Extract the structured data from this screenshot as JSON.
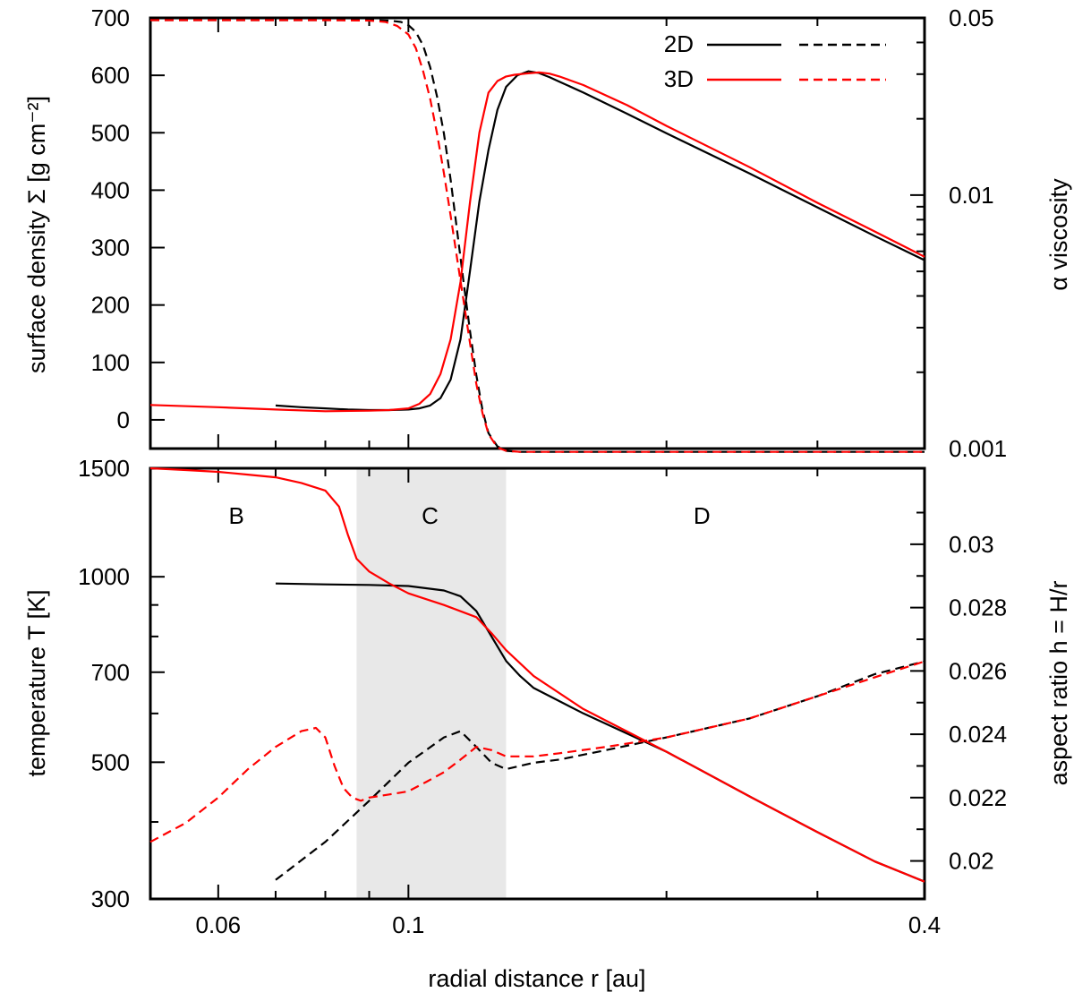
{
  "chart_data": [
    {
      "type": "line",
      "panel": "top",
      "x_scale": "log",
      "xlim": [
        0.05,
        0.4
      ],
      "ylabel_left": "surface density Σ [g cm⁻²]",
      "ylabel_right": "α viscosity",
      "ylim_left": [
        -50,
        700
      ],
      "ylim_right": [
        0.001,
        0.05
      ],
      "right_scale": "log",
      "left_ticks": [
        "0",
        "100",
        "200",
        "300",
        "400",
        "500",
        "600",
        "700"
      ],
      "right_ticks": [
        "0.001",
        "0.01",
        "0.05"
      ],
      "legend": {
        "position": "top-right",
        "entries": [
          "2D",
          "3D"
        ]
      },
      "series": [
        {
          "name": "2D",
          "axis": "left",
          "style": "solid",
          "color": "#000000",
          "x": [
            0.07,
            0.075,
            0.08,
            0.085,
            0.09,
            0.095,
            0.1,
            0.103,
            0.106,
            0.109,
            0.112,
            0.115,
            0.118,
            0.121,
            0.124,
            0.127,
            0.13,
            0.134,
            0.138,
            0.142,
            0.146,
            0.15,
            0.16,
            0.18,
            0.2,
            0.25,
            0.3,
            0.35,
            0.4
          ],
          "y": [
            25,
            22,
            20,
            18,
            17,
            17,
            18,
            20,
            25,
            38,
            70,
            140,
            260,
            380,
            470,
            540,
            580,
            600,
            607,
            604,
            597,
            589,
            570,
            533,
            499,
            429,
            370,
            320,
            278
          ]
        },
        {
          "name": "2D",
          "axis": "right",
          "style": "dashed",
          "color": "#000000",
          "x": [
            0.05,
            0.06,
            0.07,
            0.08,
            0.09,
            0.095,
            0.098,
            0.1,
            0.102,
            0.104,
            0.106,
            0.108,
            0.11,
            0.112,
            0.114,
            0.116,
            0.118,
            0.12,
            0.122,
            0.124,
            0.127,
            0.13,
            0.135,
            0.14,
            0.2,
            0.3,
            0.4
          ],
          "y": [
            0.049,
            0.049,
            0.049,
            0.049,
            0.049,
            0.0488,
            0.0482,
            0.0468,
            0.044,
            0.039,
            0.032,
            0.0245,
            0.0175,
            0.0115,
            0.0072,
            0.0045,
            0.0029,
            0.00195,
            0.00142,
            0.00115,
            0.00102,
            0.00098,
            0.00097,
            0.00097,
            0.00097,
            0.00097,
            0.00097
          ]
        },
        {
          "name": "3D",
          "axis": "left",
          "style": "solid",
          "color": "#ff0000",
          "x": [
            0.05,
            0.06,
            0.07,
            0.08,
            0.09,
            0.095,
            0.1,
            0.103,
            0.106,
            0.109,
            0.112,
            0.115,
            0.118,
            0.121,
            0.124,
            0.127,
            0.13,
            0.133,
            0.137,
            0.142,
            0.146,
            0.15,
            0.16,
            0.18,
            0.2,
            0.25,
            0.3,
            0.35,
            0.4
          ],
          "y": [
            26,
            22,
            18,
            15,
            16,
            17,
            20,
            28,
            45,
            80,
            140,
            240,
            380,
            500,
            570,
            590,
            598,
            601,
            603,
            605,
            603,
            598,
            583,
            548,
            512,
            440,
            378,
            328,
            284
          ]
        },
        {
          "name": "3D",
          "axis": "right",
          "style": "dashed",
          "color": "#ff0000",
          "x": [
            0.05,
            0.06,
            0.07,
            0.08,
            0.09,
            0.094,
            0.097,
            0.1,
            0.102,
            0.104,
            0.106,
            0.108,
            0.11,
            0.112,
            0.114,
            0.116,
            0.118,
            0.12,
            0.122,
            0.124,
            0.127,
            0.13,
            0.135,
            0.14,
            0.2,
            0.3,
            0.4
          ],
          "y": [
            0.049,
            0.049,
            0.049,
            0.049,
            0.0488,
            0.0482,
            0.0465,
            0.043,
            0.038,
            0.031,
            0.024,
            0.0175,
            0.0122,
            0.0083,
            0.0056,
            0.0038,
            0.0026,
            0.0018,
            0.00138,
            0.00114,
            0.00101,
            0.00098,
            0.00097,
            0.00097,
            0.00097,
            0.00097,
            0.00097
          ]
        }
      ]
    },
    {
      "type": "line",
      "panel": "bottom",
      "x_scale": "log",
      "xlim": [
        0.05,
        0.4
      ],
      "xlabel": "radial distance r [au]",
      "x_ticks": [
        "0.06",
        "0.1",
        "0.4"
      ],
      "ylabel_left": "temperature T [K]",
      "ylabel_right": "aspect ratio h = H/r",
      "left_scale": "log",
      "ylim_left": [
        300,
        1500
      ],
      "ylim_right": [
        0.0188,
        0.0324
      ],
      "left_ticks": [
        "300",
        "500",
        "700",
        "1000",
        "1500"
      ],
      "right_ticks": [
        "0.02",
        "0.022",
        "0.024",
        "0.026",
        "0.028",
        "0.03"
      ],
      "shaded_region": {
        "from": 0.087,
        "to": 0.13,
        "color": "#e8e8e8"
      },
      "regions": [
        {
          "label": "B",
          "x": 0.063
        },
        {
          "label": "C",
          "x": 0.106
        },
        {
          "label": "D",
          "x": 0.22
        }
      ],
      "series": [
        {
          "name": "2D",
          "axis": "left",
          "style": "solid",
          "color": "#000000",
          "x": [
            0.07,
            0.08,
            0.09,
            0.1,
            0.11,
            0.115,
            0.12,
            0.125,
            0.13,
            0.135,
            0.14,
            0.16,
            0.2,
            0.25,
            0.3,
            0.35,
            0.4
          ],
          "y": [
            975,
            972,
            970,
            966,
            950,
            930,
            880,
            800,
            730,
            690,
            660,
            600,
            520,
            440,
            385,
            345,
            320
          ]
        },
        {
          "name": "2D",
          "axis": "right",
          "style": "dashed",
          "color": "#000000",
          "x": [
            0.07,
            0.08,
            0.09,
            0.1,
            0.11,
            0.115,
            0.12,
            0.125,
            0.13,
            0.14,
            0.15,
            0.17,
            0.2,
            0.25,
            0.3,
            0.35,
            0.4
          ],
          "y": [
            0.0194,
            0.0206,
            0.0219,
            0.0231,
            0.0239,
            0.0241,
            0.0236,
            0.0231,
            0.0229,
            0.0231,
            0.0232,
            0.0235,
            0.0239,
            0.0245,
            0.0252,
            0.0259,
            0.0263
          ]
        },
        {
          "name": "3D",
          "axis": "left",
          "style": "solid",
          "color": "#ff0000",
          "x": [
            0.05,
            0.055,
            0.06,
            0.065,
            0.07,
            0.075,
            0.08,
            0.083,
            0.085,
            0.087,
            0.09,
            0.095,
            0.1,
            0.11,
            0.12,
            0.125,
            0.13,
            0.14,
            0.16,
            0.2,
            0.25,
            0.3,
            0.35,
            0.4
          ],
          "y": [
            1500,
            1490,
            1480,
            1465,
            1450,
            1420,
            1380,
            1300,
            1170,
            1070,
            1020,
            975,
            940,
            900,
            860,
            810,
            760,
            690,
            610,
            520,
            440,
            385,
            345,
            320
          ]
        },
        {
          "name": "3D",
          "axis": "right",
          "style": "dashed",
          "color": "#ff0000",
          "x": [
            0.05,
            0.055,
            0.06,
            0.065,
            0.07,
            0.075,
            0.078,
            0.08,
            0.082,
            0.084,
            0.086,
            0.088,
            0.09,
            0.095,
            0.1,
            0.105,
            0.11,
            0.115,
            0.12,
            0.125,
            0.13,
            0.135,
            0.14,
            0.15,
            0.17,
            0.2,
            0.25,
            0.3,
            0.35,
            0.4
          ],
          "y": [
            0.0206,
            0.0212,
            0.022,
            0.0229,
            0.0236,
            0.0241,
            0.0242,
            0.0239,
            0.023,
            0.0223,
            0.022,
            0.0219,
            0.022,
            0.0221,
            0.0222,
            0.0225,
            0.0228,
            0.0232,
            0.0236,
            0.0235,
            0.0233,
            0.0233,
            0.0233,
            0.0234,
            0.0236,
            0.0239,
            0.0245,
            0.0252,
            0.0258,
            0.0263
          ]
        }
      ]
    }
  ]
}
